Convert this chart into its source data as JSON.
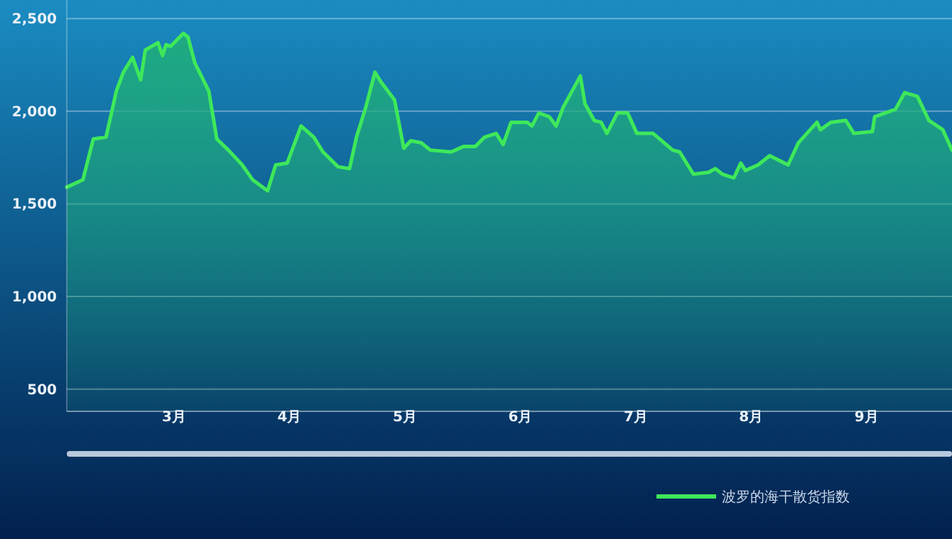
{
  "chart_data": {
    "type": "area",
    "x": [
      2.07,
      2.21,
      2.3,
      2.41,
      2.5,
      2.56,
      2.64,
      2.71,
      2.75,
      2.86,
      2.9,
      2.93,
      2.97,
      3.08,
      3.12,
      3.18,
      3.3,
      3.37,
      3.47,
      3.59,
      3.68,
      3.81,
      3.88,
      3.98,
      4.1,
      4.21,
      4.29,
      4.42,
      4.52,
      4.58,
      4.66,
      4.74,
      4.79,
      4.91,
      4.99,
      5.05,
      5.14,
      5.22,
      5.4,
      5.51,
      5.61,
      5.69,
      5.79,
      5.85,
      5.92,
      6.06,
      6.1,
      6.16,
      6.25,
      6.31,
      6.37,
      6.52,
      6.56,
      6.64,
      6.7,
      6.75,
      6.84,
      6.93,
      7.01,
      7.15,
      7.32,
      7.38,
      7.5,
      7.63,
      7.69,
      7.75,
      7.85,
      7.91,
      7.95,
      8.06,
      8.16,
      8.32,
      8.41,
      8.57,
      8.6,
      8.69,
      8.82,
      8.89,
      9.05,
      9.07,
      9.25,
      9.33,
      9.44,
      9.54,
      9.66,
      9.74
    ],
    "series": [
      {
        "name": "波罗的海干散货指数",
        "color": "#3ee85a",
        "values": [
          1590,
          1630,
          1850,
          1860,
          2110,
          2210,
          2290,
          2170,
          2330,
          2370,
          2300,
          2360,
          2350,
          2420,
          2400,
          2260,
          2110,
          1850,
          1790,
          1710,
          1630,
          1570,
          1710,
          1720,
          1920,
          1860,
          1780,
          1700,
          1690,
          1860,
          2020,
          2210,
          2160,
          2060,
          1800,
          1840,
          1830,
          1790,
          1780,
          1810,
          1810,
          1860,
          1880,
          1820,
          1940,
          1940,
          1920,
          1990,
          1970,
          1920,
          2020,
          2190,
          2040,
          1950,
          1940,
          1880,
          1990,
          1990,
          1880,
          1880,
          1790,
          1780,
          1660,
          1670,
          1690,
          1660,
          1640,
          1720,
          1680,
          1710,
          1760,
          1710,
          1830,
          1940,
          1900,
          1940,
          1950,
          1880,
          1890,
          1970,
          2010,
          2100,
          2080,
          1950,
          1900,
          1790
        ]
      }
    ],
    "xlim": [
      2.07,
      9.74
    ],
    "xticks": [
      {
        "value": 3,
        "label": "3月"
      },
      {
        "value": 4,
        "label": "4月"
      },
      {
        "value": 5,
        "label": "5月"
      },
      {
        "value": 6,
        "label": "6月"
      },
      {
        "value": 7,
        "label": "7月"
      },
      {
        "value": 8,
        "label": "8月"
      },
      {
        "value": 9,
        "label": "9月"
      }
    ],
    "ylim": [
      380,
      2600
    ],
    "yticks": [
      {
        "value": 500,
        "label": "500"
      },
      {
        "value": 1000,
        "label": "1,000"
      },
      {
        "value": 1500,
        "label": "1,500"
      },
      {
        "value": 2000,
        "label": "2,000"
      },
      {
        "value": 2500,
        "label": "2,500"
      }
    ],
    "grid": "y",
    "legend": "bottom right",
    "line_style": "solid",
    "marker": "none"
  }
}
